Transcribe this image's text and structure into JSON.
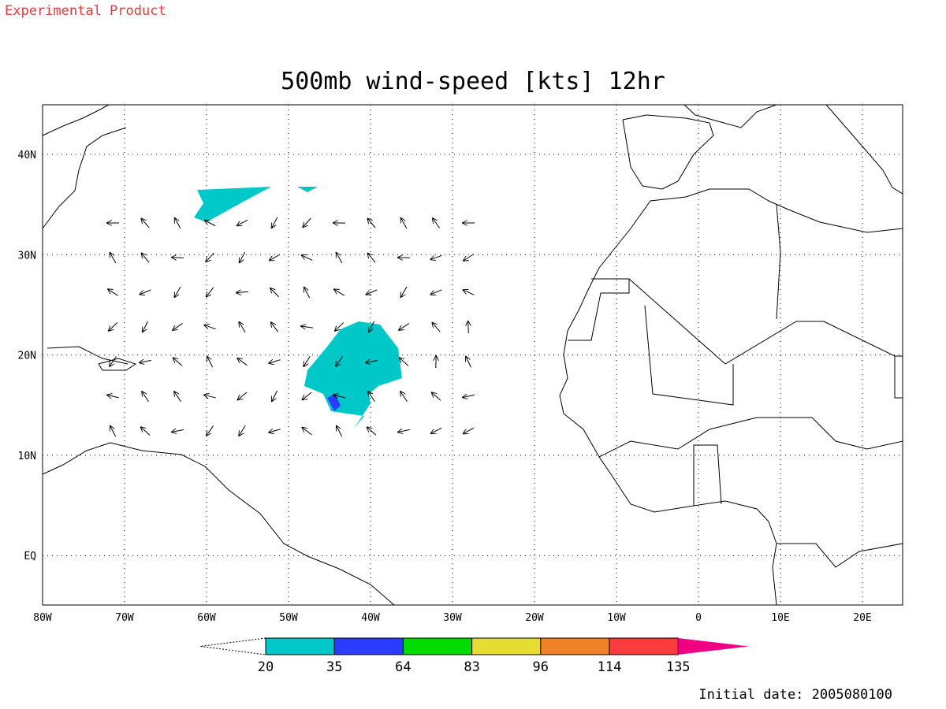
{
  "header": {
    "product": "Experimental Product",
    "title": "500mb wind-speed [kts] 12hr"
  },
  "map": {
    "lon_labels": [
      "80W",
      "70W",
      "60W",
      "50W",
      "40W",
      "30W",
      "20W",
      "10W",
      "0",
      "10E",
      "20E"
    ],
    "lat_labels": [
      "40N",
      "30N",
      "20N",
      "10N",
      "EQ"
    ]
  },
  "colorbar": {
    "levels": [
      20,
      35,
      64,
      83,
      96,
      114,
      135
    ],
    "colors": [
      "#00c8c8",
      "#2a3cff",
      "#00dc00",
      "#e6dc32",
      "#f08228",
      "#fa3c3c",
      "#f00082"
    ]
  },
  "footer": {
    "initial_date": "Initial date: 2005080100"
  }
}
